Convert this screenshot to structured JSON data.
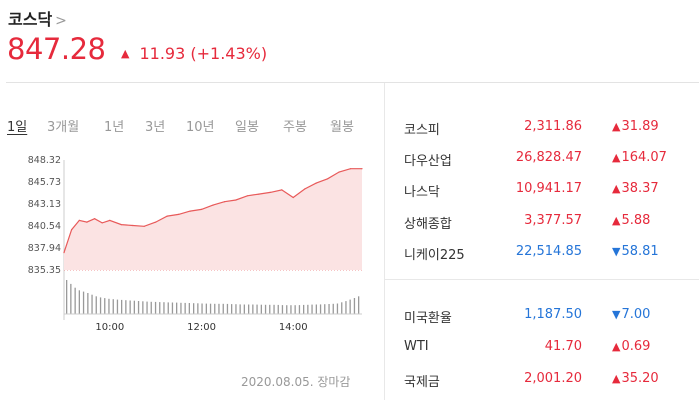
{
  "header": {
    "title": "코스닥",
    "chevron": ">",
    "price": "847.28",
    "change_arrow": "▲",
    "change": "11.93 (+1.43%)"
  },
  "tabs": [
    "1일",
    "3개월",
    "1년",
    "3년",
    "10년",
    "일봉",
    "주봉",
    "월봉"
  ],
  "active_tab": "1일",
  "chart_data": {
    "type": "area",
    "y_ticks": [
      "848.32",
      "845.73",
      "843.13",
      "840.54",
      "837.94",
      "835.35"
    ],
    "x_ticks": [
      "10:00",
      "12:00",
      "14:00"
    ],
    "ylim": [
      835.35,
      848.32
    ],
    "x": [
      "09:00",
      "09:10",
      "09:20",
      "09:30",
      "09:40",
      "09:50",
      "10:00",
      "10:15",
      "10:30",
      "10:45",
      "11:00",
      "11:15",
      "11:30",
      "11:45",
      "12:00",
      "12:15",
      "12:30",
      "12:45",
      "13:00",
      "13:15",
      "13:30",
      "13:45",
      "14:00",
      "14:15",
      "14:30",
      "14:45",
      "15:00",
      "15:15",
      "15:30"
    ],
    "values": [
      837.4,
      840.1,
      841.2,
      841.0,
      841.4,
      840.9,
      841.2,
      840.7,
      840.6,
      840.5,
      841.0,
      841.7,
      841.9,
      842.3,
      842.5,
      843.0,
      843.4,
      843.6,
      844.1,
      844.3,
      844.5,
      844.8,
      843.9,
      844.9,
      845.6,
      846.1,
      846.9,
      847.3,
      847.3
    ],
    "volume_relative": [
      1.0,
      0.72,
      0.62,
      0.5,
      0.45,
      0.42,
      0.4,
      0.38,
      0.36,
      0.35,
      0.34,
      0.33,
      0.32,
      0.31,
      0.3,
      0.3,
      0.29,
      0.28,
      0.28,
      0.27,
      0.27,
      0.26,
      0.26,
      0.27,
      0.28,
      0.29,
      0.31,
      0.4,
      0.52
    ],
    "line_color": "#e85a5a",
    "fill_color": "#fbe3e3",
    "baseline_color": "#e88"
  },
  "date_label": "2020.08.05. 장마감",
  "markets": [
    {
      "name": "코스피",
      "value": "2,311.86",
      "dir": "up",
      "arrow": "▲",
      "delta": "31.89"
    },
    {
      "name": "다우산업",
      "value": "26,828.47",
      "dir": "up",
      "arrow": "▲",
      "delta": "164.07"
    },
    {
      "name": "나스닥",
      "value": "10,941.17",
      "dir": "up",
      "arrow": "▲",
      "delta": "38.37"
    },
    {
      "name": "상해종합",
      "value": "3,377.57",
      "dir": "up",
      "arrow": "▲",
      "delta": "5.88"
    },
    {
      "name": "니케이225",
      "value": "22,514.85",
      "dir": "down",
      "arrow": "▼",
      "delta": "58.81"
    }
  ],
  "others": [
    {
      "name": "미국환율",
      "value": "1,187.50",
      "dir": "down",
      "arrow": "▼",
      "delta": "7.00"
    },
    {
      "name": "WTI",
      "value": "41.70",
      "dir": "up",
      "arrow": "▲",
      "delta": "0.69"
    },
    {
      "name": "국제금",
      "value": "2,001.20",
      "dir": "up",
      "arrow": "▲",
      "delta": "35.20"
    }
  ],
  "colors": {
    "up": "#e62a3c",
    "down": "#2575d8"
  }
}
